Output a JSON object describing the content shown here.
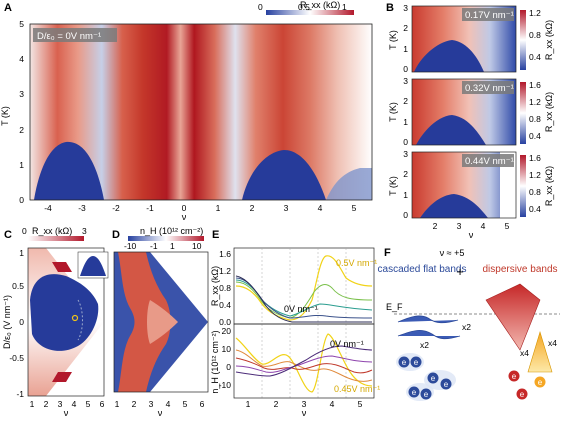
{
  "panels": {
    "A": {
      "letter": "A",
      "colorbar_label": "R_xx (kΩ)",
      "colorbar_ticks": [
        "0",
        "0.5",
        "1"
      ],
      "overlay": "D/ε₀ = 0V nm⁻¹",
      "ylabel": "T (K)",
      "yticks": [
        "0",
        "1",
        "2",
        "3",
        "4",
        "5"
      ],
      "xlabel": "ν",
      "xticks": [
        "-4",
        "-3",
        "-2",
        "-1",
        "0",
        "1",
        "2",
        "3",
        "4",
        "5"
      ]
    },
    "B": {
      "letter": "B",
      "subpanels": [
        {
          "overlay": "0.17V nm⁻¹",
          "cbar_ticks": [
            "1.2",
            "0.8",
            "0.4"
          ]
        },
        {
          "overlay": "0.32V nm⁻¹",
          "cbar_ticks": [
            "1.6",
            "1.2",
            "0.8",
            "0.4"
          ]
        },
        {
          "overlay": "0.44V nm⁻¹",
          "cbar_ticks": [
            "1.6",
            "1.2",
            "0.8",
            "0.4"
          ]
        }
      ],
      "ylabel": "T (K)",
      "yticks": [
        "0",
        "1",
        "2",
        "3"
      ],
      "cbar_label": "R_xx (kΩ)",
      "xlabel": "ν",
      "xticks": [
        "2",
        "3",
        "4",
        "5"
      ]
    },
    "C": {
      "letter": "C",
      "colorbar_label": "R_xx (kΩ)",
      "colorbar_ticks": [
        "0",
        "3"
      ],
      "ylabel": "D/ε₀ (V nm⁻¹)",
      "yticks": [
        "1",
        "0.5",
        "0",
        "-0.5",
        "-1"
      ],
      "xlabel": "ν",
      "xticks": [
        "1",
        "2",
        "3",
        "4",
        "5",
        "6"
      ]
    },
    "D": {
      "letter": "D",
      "colorbar_label": "n_H (10¹² cm⁻²)",
      "colorbar_ticks": [
        "-10",
        "-1",
        "1",
        "10"
      ],
      "xlabel": "ν",
      "xticks": [
        "1",
        "2",
        "3",
        "4",
        "5",
        "6"
      ]
    },
    "E": {
      "letter": "E",
      "top_ylabel": "R_xx (kΩ)",
      "top_yticks": [
        "1.6",
        "1.2",
        "0.8",
        "0.4",
        "0.0"
      ],
      "top_labels": [
        "0.5V nm⁻¹",
        "0V nm⁻¹"
      ],
      "bottom_ylabel": "n_H (10¹² cm⁻²)",
      "bottom_yticks": [
        "20",
        "10",
        "0",
        "-10"
      ],
      "bottom_labels": [
        "0V nm⁻¹",
        "0.45V nm⁻¹"
      ],
      "xlabel": "ν",
      "xticks": [
        "1",
        "2",
        "3",
        "4",
        "5"
      ]
    },
    "F": {
      "letter": "F",
      "nu_label": "ν ≈ +5",
      "left_title": "cascaded flat bands",
      "plus": "+",
      "right_title": "dispersive bands",
      "ef": "E_F",
      "multiplicities": [
        "x2",
        "x2",
        "x4",
        "x4"
      ],
      "electron": "e"
    }
  }
}
